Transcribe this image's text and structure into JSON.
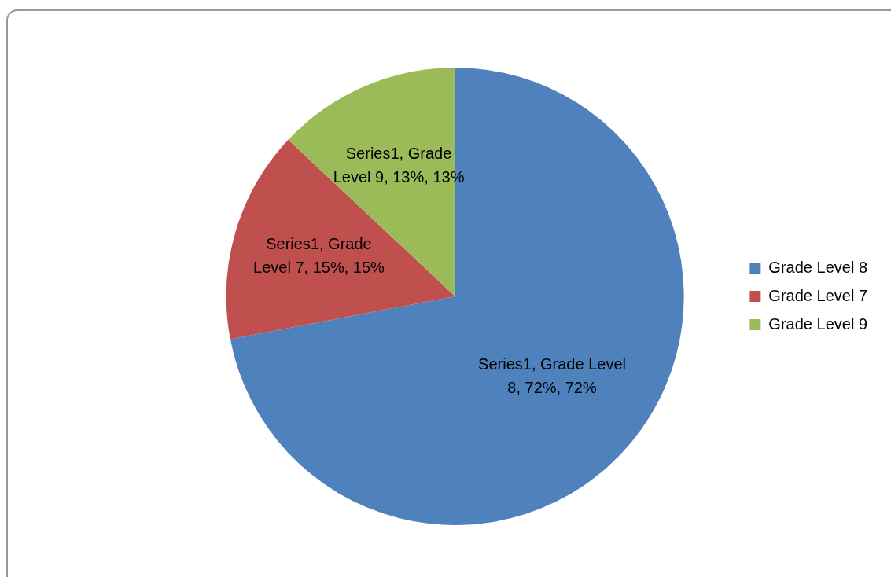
{
  "chart_data": {
    "type": "pie",
    "categories": [
      "Grade Level 8",
      "Grade Level 7",
      "Grade Level 9"
    ],
    "values": [
      72,
      15,
      13
    ],
    "colors": [
      "#4f81bd",
      "#c0504d",
      "#9bbb59"
    ],
    "value_labels": [
      "Series1, Grade Level 8, 72%, 72%",
      "Series1, Grade Level 7, 15%, 15%",
      "Series1, Grade Level 9, 13%, 13%"
    ],
    "legend": "right"
  }
}
